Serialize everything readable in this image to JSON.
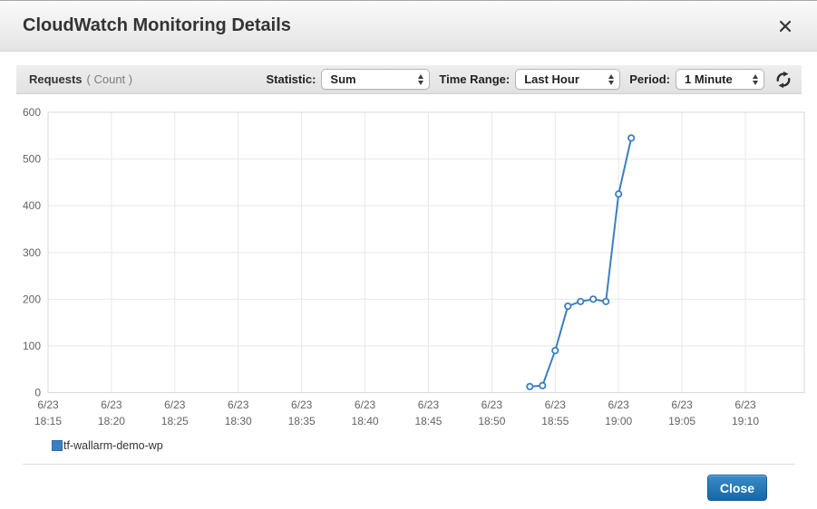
{
  "dialog": {
    "title": "CloudWatch Monitoring Details"
  },
  "toolbar": {
    "metric_name": "Requests",
    "metric_unit": "( Count )",
    "statistic_label": "Statistic:",
    "statistic_value": "Sum",
    "time_range_label": "Time Range:",
    "time_range_value": "Last Hour",
    "period_label": "Period:",
    "period_value": "1 Minute",
    "refresh_icon": "refresh-arrows"
  },
  "chart_data": {
    "type": "line",
    "title": "",
    "xlabel": "",
    "ylabel": "",
    "ylim": [
      0,
      600
    ],
    "y_ticks": [
      0,
      100,
      200,
      300,
      400,
      500,
      600
    ],
    "x_ticks": [
      {
        "date": "6/23",
        "time": "18:15"
      },
      {
        "date": "6/23",
        "time": "18:20"
      },
      {
        "date": "6/23",
        "time": "18:25"
      },
      {
        "date": "6/23",
        "time": "18:30"
      },
      {
        "date": "6/23",
        "time": "18:35"
      },
      {
        "date": "6/23",
        "time": "18:40"
      },
      {
        "date": "6/23",
        "time": "18:45"
      },
      {
        "date": "6/23",
        "time": "18:50"
      },
      {
        "date": "6/23",
        "time": "18:55"
      },
      {
        "date": "6/23",
        "time": "19:00"
      },
      {
        "date": "6/23",
        "time": "19:05"
      },
      {
        "date": "6/23",
        "time": "19:10"
      }
    ],
    "grid": true,
    "legend_position": "bottom-left",
    "series": [
      {
        "name": "tf-wallarm-demo-wp",
        "color": "#3d7fc1",
        "points": [
          {
            "time": "18:53",
            "value": 13
          },
          {
            "time": "18:54",
            "value": 15
          },
          {
            "time": "18:55",
            "value": 90
          },
          {
            "time": "18:56",
            "value": 185
          },
          {
            "time": "18:57",
            "value": 195
          },
          {
            "time": "18:58",
            "value": 200
          },
          {
            "time": "18:59",
            "value": 195
          },
          {
            "time": "19:00",
            "value": 425
          },
          {
            "time": "19:01",
            "value": 545
          }
        ]
      }
    ]
  },
  "footer": {
    "close_button": "Close"
  },
  "colors": {
    "series_blue": "#3d7fc1",
    "grid_line": "#e8e8e8",
    "plot_border": "#d9d9d9",
    "button_top": "#3b8bc8",
    "button_bottom": "#1668a6"
  }
}
